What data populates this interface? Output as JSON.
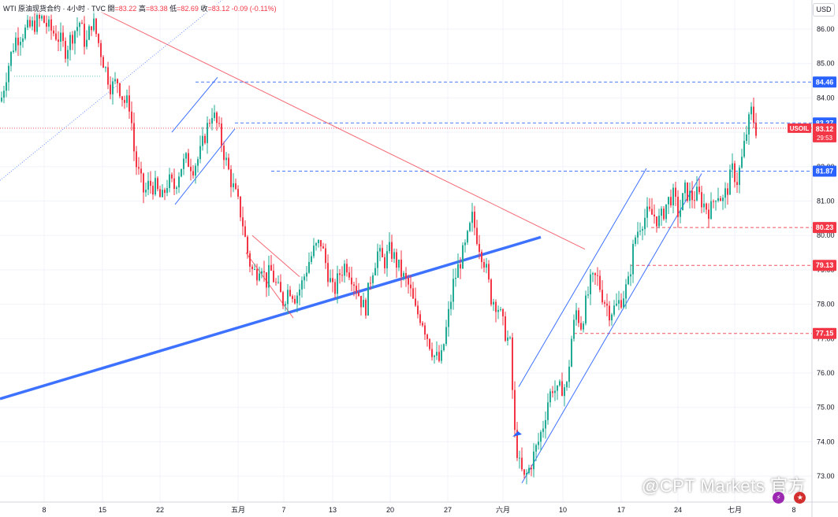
{
  "header": {
    "symbol": "WTI 原油现货合约 · 4小时 · TVC",
    "open_label": "開",
    "open_value": "=83.22",
    "high_label": "高",
    "high_value": "=83.38",
    "low_label": "低",
    "low_value": "=82.69",
    "close_label": "收",
    "close_value": "=83.12",
    "change": "-0.09 (-0.11%)"
  },
  "currency": "USD",
  "watermark": "@CPT Markets 官方",
  "icons": [
    "lightning-icon",
    "us-flag-icon"
  ],
  "colors": {
    "up": "#22ab94",
    "down": "#f23645",
    "blue_line": "#2962ff",
    "red_line": "#f23645",
    "grid": "#f0f3fa"
  },
  "chart_data": {
    "type": "candlestick",
    "symbol": "USOIL",
    "ylim": [
      72.6,
      86.8
    ],
    "y_ticks": [
      "86.00",
      "85.00",
      "84.00",
      "83.00",
      "82.00",
      "81.00",
      "80.00",
      "79.00",
      "78.00",
      "77.00",
      "76.00",
      "75.00",
      "74.00",
      "73.00"
    ],
    "x_tick_labels": [
      "8",
      "15",
      "22",
      "五月",
      "7",
      "13",
      "20",
      "27",
      "六月",
      "10",
      "17",
      "24",
      "七月",
      "8"
    ],
    "last_price": "83.12",
    "countdown": "29:53",
    "price_labels": [
      {
        "value": "84.46",
        "style": "blue"
      },
      {
        "value": "83.27",
        "style": "blue"
      },
      {
        "value": "81.87",
        "style": "blue"
      },
      {
        "value": "80.23",
        "style": "red"
      },
      {
        "value": "79.13",
        "style": "red"
      },
      {
        "value": "77.15",
        "style": "red"
      }
    ],
    "horizontal_levels": [
      {
        "value": 84.46,
        "color": "blue"
      },
      {
        "value": 83.27,
        "color": "blue"
      },
      {
        "value": 83.12,
        "color": "red"
      },
      {
        "value": 81.87,
        "color": "blue"
      },
      {
        "value": 80.23,
        "color": "red"
      },
      {
        "value": 79.13,
        "color": "red"
      },
      {
        "value": 77.15,
        "color": "red"
      }
    ],
    "close_path": [
      [
        0,
        83.9
      ],
      [
        8,
        84.8
      ],
      [
        18,
        85.7
      ],
      [
        28,
        85.9
      ],
      [
        40,
        86.1
      ],
      [
        52,
        86.3
      ],
      [
        62,
        86.0
      ],
      [
        72,
        85.8
      ],
      [
        82,
        85.4
      ],
      [
        92,
        85.9
      ],
      [
        100,
        86.2
      ],
      [
        108,
        85.5
      ],
      [
        116,
        86.3
      ],
      [
        124,
        85.6
      ],
      [
        132,
        84.9
      ],
      [
        140,
        84.3
      ],
      [
        148,
        84.5
      ],
      [
        156,
        83.9
      ],
      [
        164,
        83.8
      ],
      [
        170,
        82.2
      ],
      [
        176,
        81.7
      ],
      [
        182,
        81.2
      ],
      [
        188,
        81.5
      ],
      [
        196,
        81.4
      ],
      [
        204,
        81.0
      ],
      [
        212,
        81.6
      ],
      [
        220,
        81.4
      ],
      [
        228,
        82.0
      ],
      [
        236,
        82.2
      ],
      [
        244,
        82.0
      ],
      [
        252,
        82.3
      ],
      [
        260,
        83.0
      ],
      [
        268,
        83.6
      ],
      [
        276,
        83.1
      ],
      [
        284,
        82.3
      ],
      [
        292,
        81.6
      ],
      [
        300,
        81.0
      ],
      [
        306,
        80.5
      ],
      [
        312,
        79.6
      ],
      [
        318,
        79.0
      ],
      [
        324,
        78.9
      ],
      [
        330,
        79.3
      ],
      [
        336,
        78.6
      ],
      [
        342,
        79.0
      ],
      [
        350,
        78.5
      ],
      [
        358,
        78.1
      ],
      [
        366,
        78.5
      ],
      [
        374,
        78.2
      ],
      [
        382,
        78.6
      ],
      [
        390,
        79.2
      ],
      [
        398,
        79.6
      ],
      [
        406,
        79.8
      ],
      [
        414,
        79.0
      ],
      [
        422,
        78.3
      ],
      [
        430,
        78.9
      ],
      [
        438,
        79.2
      ],
      [
        446,
        78.8
      ],
      [
        454,
        78.3
      ],
      [
        462,
        77.8
      ],
      [
        470,
        78.9
      ],
      [
        478,
        79.5
      ],
      [
        486,
        79.2
      ],
      [
        494,
        79.6
      ],
      [
        502,
        79.2
      ],
      [
        510,
        78.8
      ],
      [
        518,
        78.5
      ],
      [
        526,
        77.8
      ],
      [
        534,
        77.6
      ],
      [
        542,
        77.0
      ],
      [
        550,
        76.5
      ],
      [
        558,
        76.3
      ],
      [
        566,
        77.4
      ],
      [
        574,
        78.6
      ],
      [
        582,
        79.2
      ],
      [
        590,
        79.7
      ],
      [
        598,
        80.5
      ],
      [
        606,
        79.8
      ],
      [
        614,
        79.2
      ],
      [
        622,
        78.2
      ],
      [
        630,
        78.0
      ],
      [
        638,
        77.3
      ],
      [
        646,
        76.8
      ],
      [
        652,
        74.2
      ],
      [
        658,
        73.3
      ],
      [
        664,
        72.9
      ],
      [
        670,
        73.2
      ],
      [
        676,
        73.6
      ],
      [
        682,
        74.0
      ],
      [
        688,
        74.5
      ],
      [
        694,
        75.2
      ],
      [
        700,
        75.6
      ],
      [
        706,
        75.4
      ],
      [
        712,
        75.6
      ],
      [
        718,
        75.6
      ],
      [
        724,
        77.0
      ],
      [
        730,
        77.8
      ],
      [
        736,
        77.4
      ],
      [
        742,
        78.0
      ],
      [
        748,
        78.6
      ],
      [
        756,
        78.8
      ],
      [
        764,
        78.2
      ],
      [
        772,
        77.8
      ],
      [
        780,
        77.9
      ],
      [
        788,
        78.2
      ],
      [
        796,
        78.6
      ],
      [
        804,
        79.9
      ],
      [
        812,
        80.4
      ],
      [
        820,
        80.6
      ],
      [
        828,
        80.6
      ],
      [
        836,
        80.4
      ],
      [
        844,
        80.9
      ],
      [
        852,
        81.2
      ],
      [
        860,
        80.6
      ],
      [
        868,
        81.3
      ],
      [
        876,
        81.1
      ],
      [
        884,
        81.2
      ],
      [
        892,
        80.9
      ],
      [
        900,
        80.7
      ],
      [
        908,
        81.3
      ],
      [
        916,
        81.0
      ],
      [
        922,
        81.4
      ],
      [
        928,
        81.9
      ],
      [
        934,
        81.6
      ],
      [
        940,
        82.2
      ],
      [
        946,
        83.0
      ],
      [
        952,
        83.6
      ],
      [
        958,
        83.1
      ]
    ],
    "drawings": [
      {
        "kind": "trendline",
        "color": "blue",
        "width": "thick",
        "from": [
          0,
          75.25
        ],
        "to": [
          686,
          79.95
        ]
      },
      {
        "kind": "trendline",
        "color": "red",
        "width": "thin",
        "from": [
          128,
          86.5
        ],
        "to": [
          742,
          79.6
        ]
      },
      {
        "kind": "trendline",
        "color": "blue",
        "width": "thin",
        "from": [
          658,
          75.6
        ],
        "to": [
          820,
          81.95
        ]
      },
      {
        "kind": "trendline",
        "color": "blue",
        "width": "thin",
        "from": [
          662,
          72.8
        ],
        "to": [
          890,
          81.8
        ]
      },
      {
        "kind": "trendline",
        "color": "blue",
        "width": "thin",
        "from": [
          218,
          83.0
        ],
        "to": [
          276,
          84.6
        ]
      },
      {
        "kind": "trendline",
        "color": "blue",
        "width": "thin",
        "from": [
          222,
          80.9
        ],
        "to": [
          298,
          83.1
        ]
      },
      {
        "kind": "trendline",
        "color": "red",
        "width": "thin",
        "from": [
          312,
          79.5
        ],
        "to": [
          372,
          77.6
        ]
      },
      {
        "kind": "trendline",
        "color": "red",
        "width": "thin",
        "from": [
          320,
          80.0
        ],
        "to": [
          380,
          78.8
        ]
      },
      {
        "kind": "trendline",
        "color": "blue",
        "width": "dotted",
        "from": [
          0,
          81.6
        ],
        "to": [
          290,
          87.0
        ]
      },
      {
        "kind": "trendline",
        "color": "green",
        "width": "dotted",
        "from": [
          18,
          84.63
        ],
        "to": [
          128,
          84.63
        ]
      }
    ]
  }
}
